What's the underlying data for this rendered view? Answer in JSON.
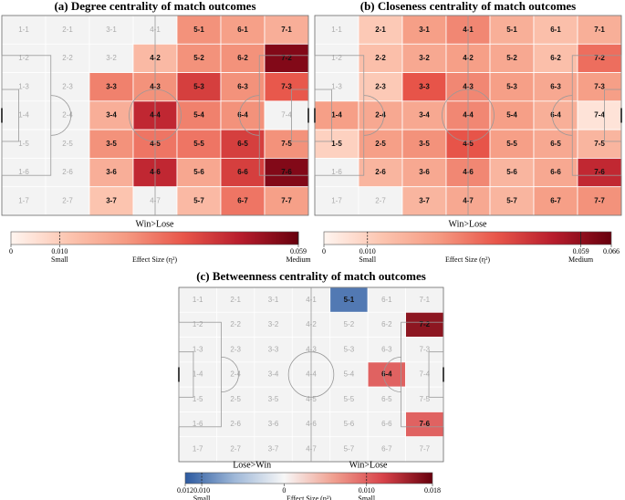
{
  "chart_data": [
    {
      "type": "heatmap",
      "title": "(a) Degree centrality of match outcomes",
      "labels": [
        [
          "1-1",
          "2-1",
          "3-1",
          "4-1",
          "5-1",
          "6-1",
          "7-1"
        ],
        [
          "1-2",
          "2-2",
          "3-2",
          "4-2",
          "5-2",
          "6-2",
          "7-2"
        ],
        [
          "1-3",
          "2-3",
          "3-3",
          "4-3",
          "5-3",
          "6-3",
          "7-3"
        ],
        [
          "1-4",
          "2-4",
          "3-4",
          "4-4",
          "5-4",
          "6-4",
          "7-4"
        ],
        [
          "1-5",
          "2-5",
          "3-5",
          "4-5",
          "5-5",
          "6-5",
          "7-5"
        ],
        [
          "1-6",
          "2-6",
          "3-6",
          "4-6",
          "5-6",
          "6-6",
          "7-6"
        ],
        [
          "1-7",
          "2-7",
          "3-7",
          "4-7",
          "5-7",
          "6-7",
          "7-7"
        ]
      ],
      "values": [
        [
          null,
          null,
          null,
          null,
          0.025,
          0.022,
          0.018
        ],
        [
          null,
          null,
          null,
          0.015,
          0.025,
          0.025,
          0.055
        ],
        [
          null,
          null,
          0.028,
          0.025,
          0.04,
          0.025,
          0.035
        ],
        [
          null,
          null,
          0.018,
          0.045,
          0.028,
          0.025,
          null
        ],
        [
          null,
          null,
          0.025,
          0.03,
          0.03,
          0.04,
          0.025
        ],
        [
          null,
          null,
          0.018,
          0.045,
          0.02,
          0.04,
          0.055
        ],
        [
          null,
          null,
          0.012,
          null,
          0.015,
          0.03,
          0.022
        ]
      ],
      "colormap": [
        "#fff5f0",
        "#fcc5b0",
        "#f59a82",
        "#e8564a",
        "#b71c2c",
        "#67000d"
      ],
      "colorbar": {
        "label": "Effect Size (η²)",
        "direction_labels": [
          "Win>Lose"
        ],
        "xlim": [
          0,
          0.059
        ],
        "ticks": [
          0,
          {
            "value": 0.01,
            "label": "0.010"
          },
          0.059
        ],
        "marks": [
          {
            "value": 0.01,
            "label": "Small"
          },
          {
            "value": 0.059,
            "label": "Medium"
          }
        ]
      }
    },
    {
      "type": "heatmap",
      "title": "(b) Closeness centrality of match outcomes",
      "labels": [
        [
          "1-1",
          "2-1",
          "3-1",
          "4-1",
          "5-1",
          "6-1",
          "7-1"
        ],
        [
          "1-2",
          "2-2",
          "3-2",
          "4-2",
          "5-2",
          "6-2",
          "7-2"
        ],
        [
          "1-3",
          "2-3",
          "3-3",
          "4-3",
          "5-3",
          "6-3",
          "7-3"
        ],
        [
          "1-4",
          "2-4",
          "3-4",
          "4-4",
          "5-4",
          "6-4",
          "7-4"
        ],
        [
          "1-5",
          "2-5",
          "3-5",
          "4-5",
          "5-5",
          "6-5",
          "7-5"
        ],
        [
          "1-6",
          "2-6",
          "3-6",
          "4-6",
          "5-6",
          "6-6",
          "7-6"
        ],
        [
          "1-7",
          "2-7",
          "3-7",
          "4-7",
          "5-7",
          "6-7",
          "7-7"
        ]
      ],
      "values": [
        [
          null,
          0.012,
          0.025,
          0.03,
          0.02,
          0.015,
          0.02
        ],
        [
          null,
          0.015,
          0.022,
          0.025,
          0.022,
          0.015,
          0.035
        ],
        [
          null,
          0.012,
          0.04,
          0.03,
          0.025,
          0.022,
          0.025
        ],
        [
          0.025,
          0.022,
          0.022,
          0.03,
          0.025,
          0.02,
          0.005
        ],
        [
          0.01,
          0.025,
          0.028,
          0.04,
          0.025,
          0.022,
          0.018
        ],
        [
          null,
          0.018,
          0.022,
          0.03,
          0.018,
          0.022,
          0.05
        ],
        [
          null,
          null,
          0.018,
          0.022,
          0.018,
          0.025,
          0.028
        ]
      ],
      "colormap": [
        "#fff5f0",
        "#fcc5b0",
        "#f59a82",
        "#e8564a",
        "#b71c2c",
        "#67000d"
      ],
      "colorbar": {
        "label": "Effect Size (η²)",
        "direction_labels": [
          "Win>Lose"
        ],
        "xlim": [
          0,
          0.066
        ],
        "ticks": [
          0,
          {
            "value": 0.01,
            "label": "0.010"
          },
          0.059,
          0.066
        ],
        "marks": [
          {
            "value": 0.01,
            "label": "Small"
          },
          {
            "value": 0.059,
            "label": "Medium"
          }
        ]
      }
    },
    {
      "type": "heatmap",
      "title": "(c) Betweenness centrality of match outcomes",
      "labels": [
        [
          "1-1",
          "2-1",
          "3-1",
          "4-1",
          "5-1",
          "6-1",
          "7-1"
        ],
        [
          "1-2",
          "2-2",
          "3-2",
          "4-2",
          "5-2",
          "6-2",
          "7-2"
        ],
        [
          "1-3",
          "2-3",
          "3-3",
          "4-3",
          "5-3",
          "6-3",
          "7-3"
        ],
        [
          "1-4",
          "2-4",
          "3-4",
          "4-4",
          "5-4",
          "6-4",
          "7-4"
        ],
        [
          "1-5",
          "2-5",
          "3-5",
          "4-5",
          "5-5",
          "6-5",
          "7-5"
        ],
        [
          "1-6",
          "2-6",
          "3-6",
          "4-6",
          "5-6",
          "6-6",
          "7-6"
        ],
        [
          "1-7",
          "2-7",
          "3-7",
          "4-7",
          "5-7",
          "6-7",
          "7-7"
        ]
      ],
      "values": [
        [
          null,
          null,
          null,
          null,
          -0.01,
          null,
          null
        ],
        [
          null,
          null,
          null,
          null,
          null,
          null,
          0.016
        ],
        [
          null,
          null,
          null,
          null,
          null,
          null,
          null
        ],
        [
          null,
          null,
          null,
          null,
          null,
          0.01,
          null
        ],
        [
          null,
          null,
          null,
          null,
          null,
          null,
          null
        ],
        [
          null,
          null,
          null,
          null,
          null,
          null,
          0.01
        ],
        [
          null,
          null,
          null,
          null,
          null,
          null,
          null
        ]
      ],
      "colormap": [
        "#2c5aa0",
        "#9fb8d8",
        "#f7f7f7",
        "#f0a090",
        "#d8434a",
        "#67000d"
      ],
      "colorbar": {
        "label": "Effect Size (η²)",
        "direction_labels": [
          "Lose>Win",
          "Win>Lose"
        ],
        "xlim": [
          -0.012,
          0.018
        ],
        "ticks": [
          {
            "value": -0.012,
            "label": "0.012"
          },
          {
            "value": -0.01,
            "label": "0.010"
          },
          0,
          {
            "value": 0.01,
            "label": "0.010"
          },
          0.018
        ],
        "marks": [
          {
            "value": -0.01,
            "label": "Small"
          },
          {
            "value": 0.01,
            "label": "Small"
          }
        ]
      }
    }
  ]
}
